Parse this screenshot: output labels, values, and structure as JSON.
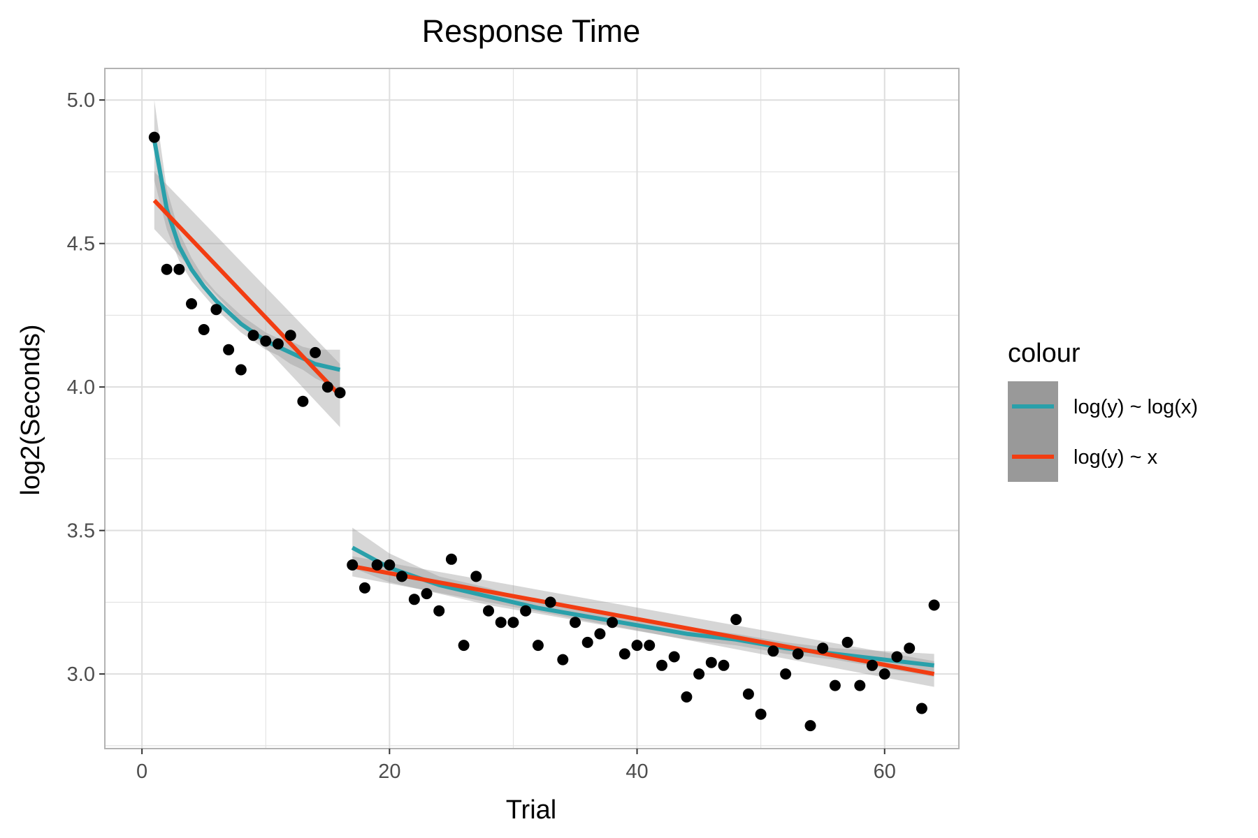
{
  "chart_data": {
    "type": "scatter",
    "title": "Response Time",
    "xlabel": "Trial",
    "ylabel": "log2(Seconds)",
    "xlim": [
      -3,
      66
    ],
    "ylim": [
      2.74,
      5.11
    ],
    "x_ticks": [
      0,
      20,
      40,
      60
    ],
    "x_tick_labels": [
      "0",
      "20",
      "40",
      "60"
    ],
    "y_ticks": [
      3.0,
      3.5,
      4.0,
      4.5,
      5.0
    ],
    "y_tick_labels": [
      "3.0",
      "3.5",
      "4.0",
      "4.5",
      "5.0"
    ],
    "grid": true,
    "points": {
      "x": [
        1,
        2,
        3,
        4,
        5,
        6,
        7,
        8,
        9,
        10,
        11,
        12,
        13,
        14,
        15,
        16,
        17,
        18,
        19,
        20,
        21,
        22,
        23,
        24,
        25,
        26,
        27,
        28,
        29,
        30,
        31,
        32,
        33,
        34,
        35,
        36,
        37,
        38,
        39,
        40,
        41,
        42,
        43,
        44,
        45,
        46,
        47,
        48,
        49,
        50,
        51,
        52,
        53,
        54,
        55,
        56,
        57,
        58,
        59,
        60,
        61,
        62,
        63,
        64
      ],
      "y": [
        4.87,
        4.41,
        4.41,
        4.29,
        4.2,
        4.27,
        4.13,
        4.06,
        4.18,
        4.16,
        4.15,
        4.18,
        3.95,
        4.12,
        4.0,
        3.98,
        3.38,
        3.3,
        3.38,
        3.38,
        3.34,
        3.26,
        3.28,
        3.22,
        3.4,
        3.1,
        3.34,
        3.22,
        3.18,
        3.18,
        3.22,
        3.1,
        3.25,
        3.05,
        3.18,
        3.11,
        3.14,
        3.18,
        3.07,
        3.1,
        3.1,
        3.03,
        3.06,
        2.92,
        3.0,
        3.04,
        3.03,
        3.19,
        2.93,
        2.86,
        3.08,
        3.0,
        3.07,
        2.82,
        3.09,
        2.96,
        3.11,
        2.96,
        3.03,
        3.0,
        3.06,
        3.09,
        2.88,
        3.24
      ]
    },
    "series": [
      {
        "name": "log(y) ~ log(x)",
        "color": "#2aa0aa",
        "segments": [
          {
            "x": [
              1,
              2,
              3,
              4,
              5,
              6,
              7,
              8,
              9,
              10,
              11,
              12,
              13,
              14,
              15,
              16
            ],
            "y": [
              4.86,
              4.62,
              4.49,
              4.41,
              4.35,
              4.3,
              4.26,
              4.22,
              4.19,
              4.16,
              4.14,
              4.12,
              4.1,
              4.08,
              4.07,
              4.06
            ],
            "band_halfwidth": [
              0.14,
              0.07,
              0.05,
              0.04,
              0.03,
              0.03,
              0.03,
              0.03,
              0.03,
              0.03,
              0.03,
              0.04,
              0.04,
              0.05,
              0.06,
              0.07
            ]
          },
          {
            "x": [
              17,
              20,
              24,
              28,
              32,
              36,
              40,
              44,
              48,
              52,
              56,
              60,
              64
            ],
            "y": [
              3.44,
              3.37,
              3.31,
              3.27,
              3.23,
              3.2,
              3.17,
              3.14,
              3.12,
              3.09,
              3.07,
              3.05,
              3.03
            ],
            "band_halfwidth": [
              0.07,
              0.05,
              0.03,
              0.03,
              0.02,
              0.02,
              0.02,
              0.02,
              0.02,
              0.02,
              0.02,
              0.03,
              0.04
            ]
          }
        ]
      },
      {
        "name": "log(y) ~ x",
        "color": "#f23d12",
        "segments": [
          {
            "x": [
              1,
              16
            ],
            "y": [
              4.65,
              3.97
            ],
            "band_halfwidth": [
              0.1,
              0.11
            ]
          },
          {
            "x": [
              17,
              64
            ],
            "y": [
              3.375,
              3.0
            ],
            "band_halfwidth": [
              0.035,
              0.045
            ]
          }
        ]
      }
    ],
    "legend": {
      "title": "colour",
      "position": "right",
      "entries": [
        "log(y) ~ log(x)",
        "log(y) ~ x"
      ]
    },
    "colors": {
      "panel_border": "#b3b3b3",
      "grid": "#dedede",
      "band": "#999999",
      "points": "#000000",
      "legend_key_bg": "#999999"
    }
  }
}
